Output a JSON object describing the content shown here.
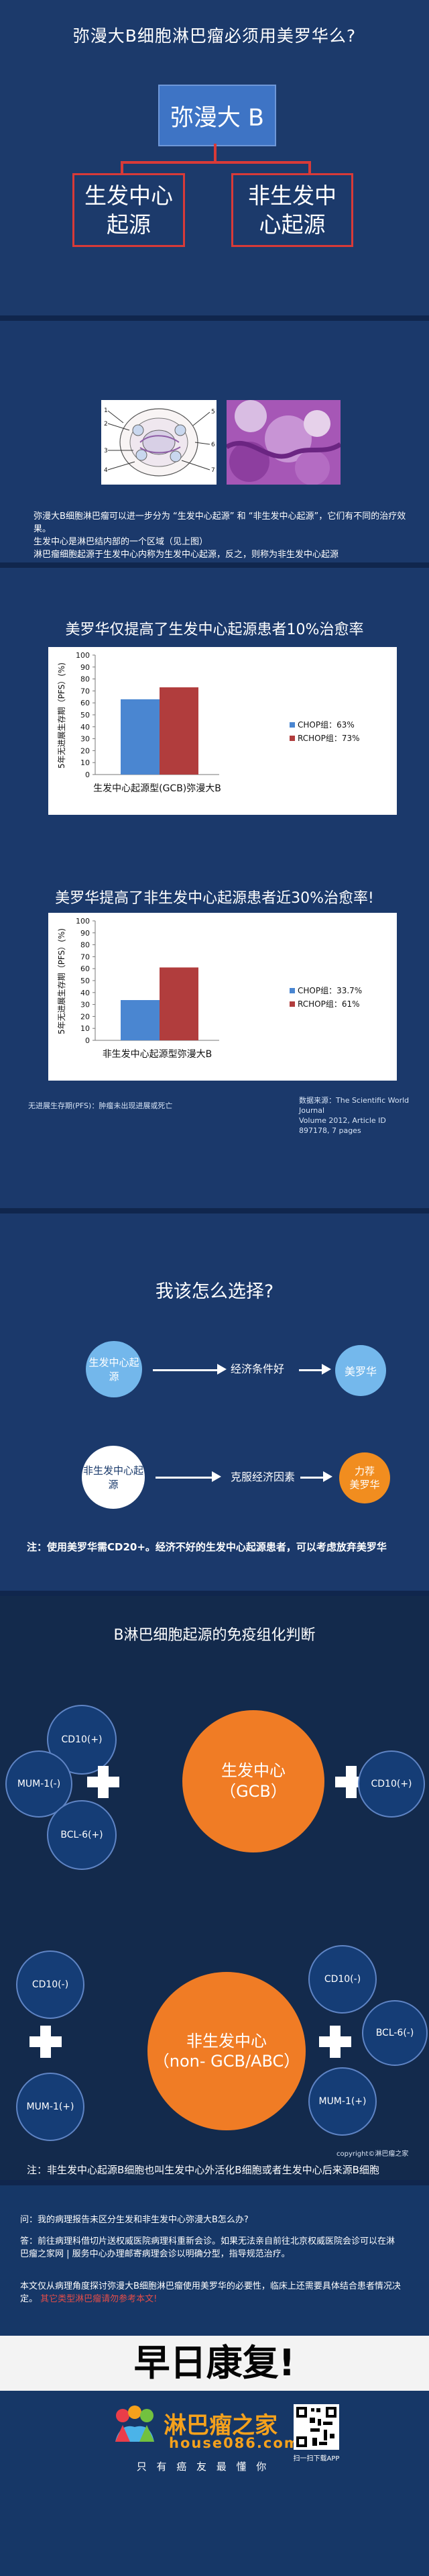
{
  "section1": {
    "title": "弥漫大B细胞淋巴瘤必须用美罗华么?",
    "root": "弥漫大 B",
    "left": "生发中心\n起源",
    "right": "非生发中\n心起源"
  },
  "section2": {
    "figure_labels": [
      "1",
      "2",
      "3",
      "4",
      "5",
      "6",
      "7"
    ],
    "body": [
      "弥漫大B细胞淋巴瘤可以进一步分为 “生发中心起源” 和 “非生发中心起源”，它们有不同的治疗效果。",
      "生发中心是淋巴结内部的一个区域（见上图）",
      "淋巴瘤细胞起源于生发中心内称为生发中心起源，反之，则称为非生发中心起源"
    ]
  },
  "chart_data": [
    {
      "type": "bar",
      "title": "美罗华仅提高了生发中心起源患者10%治愈率",
      "categories": [
        "生发中心起源型(GCB)弥漫大B"
      ],
      "series": [
        {
          "name": "CHOP组：63%",
          "values": [
            63
          ],
          "color": "#4a86d1"
        },
        {
          "name": "RCHOP组：73%",
          "values": [
            73
          ],
          "color": "#b13d3d"
        }
      ],
      "ylabel": "5年无进展生存期（PFS）(%)",
      "y_ticks": [
        "0",
        "10",
        "20",
        "30",
        "40",
        "50",
        "60",
        "70",
        "80",
        "90",
        "100"
      ],
      "ylim": [
        0,
        100
      ],
      "grid": false,
      "legend": "right"
    },
    {
      "type": "bar",
      "title": "美罗华提高了非生发中心起源患者近30%治愈率!",
      "categories": [
        "非生发中心起源型弥漫大B"
      ],
      "series": [
        {
          "name": "CHOP组：33.7%",
          "values": [
            33.7
          ],
          "color": "#4a86d1"
        },
        {
          "name": "RCHOP组：61%",
          "values": [
            61
          ],
          "color": "#b13d3d"
        }
      ],
      "ylabel": "5年无进展生存期（PFS）(%)",
      "y_ticks": [
        "0",
        "10",
        "20",
        "30",
        "40",
        "50",
        "60",
        "70",
        "80",
        "90",
        "100"
      ],
      "ylim": [
        0,
        100
      ],
      "grid": false,
      "legend": "right"
    }
  ],
  "chart_notes": {
    "left": "无进展生存期(PFS)：肿瘤未出现进展或死亡",
    "right": "数据来源：The Scientific World Journal\nVolume 2012, Article ID 897178, 7 pages"
  },
  "section4": {
    "title": "我该怎么选择?",
    "row1_left": "生发中心起源",
    "row1_mid": "经济条件好",
    "row1_right": "美罗华",
    "row2_left": "非生发中心起源",
    "row2_mid": "克服经济因素",
    "row2_right": "力荐\n美罗华",
    "note": "注：使用美罗华需CD20+。经济不好的生发中心起源患者，可以考虑放弃美罗华"
  },
  "section5": {
    "title": "B淋巴细胞起源的免疫组化判断",
    "gcb_center": "生发中心\n（GCB）",
    "gcb_nodes": [
      "CD10(+)",
      "MUM-1(-)",
      "BCL-6(+)",
      "CD10(+)"
    ],
    "nongcb_center": "非生发中心\n（non- GCB/ABC）",
    "nongcb_nodes": [
      "CD10(-)",
      "MUM-1(+)",
      "CD10(-)",
      "BCL-6(-)",
      "MUM-1(+)"
    ],
    "copyright": "copyright©淋巴瘤之家",
    "note": "注：非生发中心起源B细胞也叫生发中心外活化B细胞或者生发中心后来源B细胞"
  },
  "section6": {
    "q": "问：我的病理报告未区分生发和非生发中心弥漫大B怎么办?",
    "a": "答：前往病理科借切片送权威医院病理科重新会诊。如果无法亲自前往北京权威医院会诊可以在淋巴瘤之家网 | 服务中心办理邮寄病理会诊以明确分型，指导规范治疗。",
    "footer_1": "本文仅从病理角度探讨弥漫大B细胞淋巴瘤使用美罗华的必要性，临床上还需要具体结合患者情况决定。",
    "footer_link": "其它类型淋巴瘤请勿参考本文!",
    "banner": "早日康复!"
  },
  "brand": {
    "name": "淋巴瘤之家",
    "site": "house086.com",
    "slogan": "只 有 癌 友 最 懂 你",
    "qr_label": "扫一扫下载APP"
  }
}
